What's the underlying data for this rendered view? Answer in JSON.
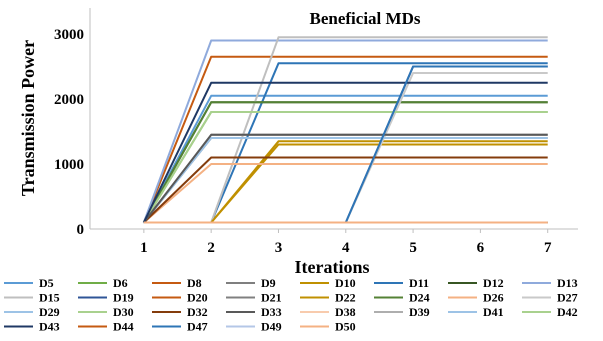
{
  "chart_data": {
    "type": "line",
    "title": "Beneficial MDs",
    "xlabel": "Iterations",
    "ylabel": "Transmission Power",
    "x": [
      1,
      2,
      3,
      4,
      5,
      6,
      7
    ],
    "xlim": [
      0.2,
      7.45
    ],
    "ylim": [
      0,
      3400
    ],
    "yticks": [
      0,
      1000,
      2000,
      3000
    ],
    "grid": false,
    "legend_position": "bottom",
    "series": [
      {
        "name": "D5",
        "color": "#5b9bd5",
        "values": [
          100,
          2050,
          2050,
          2050,
          2050,
          2050,
          2050
        ]
      },
      {
        "name": "D6",
        "color": "#70ad47",
        "values": [
          100,
          1800,
          1800,
          1800,
          1800,
          1800,
          1800
        ]
      },
      {
        "name": "D8",
        "color": "#c55a11",
        "values": [
          100,
          2650,
          2650,
          2650,
          2650,
          2650,
          2650
        ]
      },
      {
        "name": "D9",
        "color": "#7f7f7f",
        "values": [
          100,
          1450,
          1450,
          1450,
          1450,
          1450,
          1450
        ]
      },
      {
        "name": "D10",
        "color": "#bf9000",
        "values": [
          100,
          100,
          1350,
          1350,
          1350,
          1350,
          1350
        ]
      },
      {
        "name": "D11",
        "color": "#2e75b6",
        "values": [
          100,
          100,
          2550,
          2550,
          2550,
          2550,
          2550
        ]
      },
      {
        "name": "D12",
        "color": "#375623",
        "values": [
          100,
          1950,
          1950,
          1950,
          1950,
          1950,
          1950
        ]
      },
      {
        "name": "D13",
        "color": "#8faadc",
        "values": [
          100,
          2900,
          2900,
          2900,
          2900,
          2900,
          2900
        ]
      },
      {
        "name": "D15",
        "color": "#bfbfbf",
        "values": [
          100,
          100,
          2950,
          2950,
          2950,
          2950,
          2950
        ]
      },
      {
        "name": "D19",
        "color": "#2f5597",
        "values": [
          100,
          100,
          100,
          100,
          2500,
          2500,
          2500
        ]
      },
      {
        "name": "D20",
        "color": "#c55a11",
        "values": [
          100,
          100,
          100,
          100,
          100,
          100,
          100
        ]
      },
      {
        "name": "D21",
        "color": "#808080",
        "values": [
          100,
          1400,
          1400,
          1400,
          1400,
          1400,
          1400
        ]
      },
      {
        "name": "D22",
        "color": "#c09000",
        "values": [
          100,
          100,
          1300,
          1300,
          1300,
          1300,
          1300
        ]
      },
      {
        "name": "D24",
        "color": "#548235",
        "values": [
          100,
          1950,
          1950,
          1950,
          1950,
          1950,
          1950
        ]
      },
      {
        "name": "D26",
        "color": "#f4b183",
        "values": [
          100,
          1000,
          1000,
          1000,
          1000,
          1000,
          1000
        ]
      },
      {
        "name": "D27",
        "color": "#c9c9c9",
        "values": [
          100,
          100,
          100,
          100,
          2400,
          2400,
          2400
        ]
      },
      {
        "name": "D29",
        "color": "#9dc3e6",
        "values": [
          100,
          1400,
          1400,
          1400,
          1400,
          1400,
          1400
        ]
      },
      {
        "name": "D30",
        "color": "#a9d18e",
        "values": [
          100,
          1800,
          1800,
          1800,
          1800,
          1800,
          1800
        ]
      },
      {
        "name": "D32",
        "color": "#843c0c",
        "values": [
          100,
          1100,
          1100,
          1100,
          1100,
          1100,
          1100
        ]
      },
      {
        "name": "D33",
        "color": "#595959",
        "values": [
          100,
          1450,
          1450,
          1450,
          1450,
          1450,
          1450
        ]
      },
      {
        "name": "D38",
        "color": "#f8cbad",
        "values": [
          100,
          100,
          100,
          100,
          100,
          100,
          100
        ]
      },
      {
        "name": "D39",
        "color": "#aeaeae",
        "values": [
          100,
          100,
          100,
          100,
          100,
          100,
          100
        ]
      },
      {
        "name": "D41",
        "color": "#9dc3e6",
        "values": [
          100,
          100,
          100,
          100,
          100,
          100,
          100
        ]
      },
      {
        "name": "D42",
        "color": "#a9d18e",
        "values": [
          100,
          100,
          100,
          100,
          100,
          100,
          100
        ]
      },
      {
        "name": "D43",
        "color": "#1f3864",
        "values": [
          100,
          2250,
          2250,
          2250,
          2250,
          2250,
          2250
        ]
      },
      {
        "name": "D44",
        "color": "#c55a11",
        "values": [
          100,
          100,
          100,
          100,
          100,
          100,
          100
        ]
      },
      {
        "name": "D47",
        "color": "#2e75b6",
        "values": [
          100,
          100,
          100,
          100,
          2500,
          2500,
          2500
        ]
      },
      {
        "name": "D49",
        "color": "#b4c7e7",
        "values": [
          100,
          100,
          100,
          100,
          100,
          100,
          100
        ]
      },
      {
        "name": "D50",
        "color": "#f4b183",
        "values": [
          100,
          100,
          100,
          100,
          100,
          100,
          100
        ]
      }
    ]
  }
}
